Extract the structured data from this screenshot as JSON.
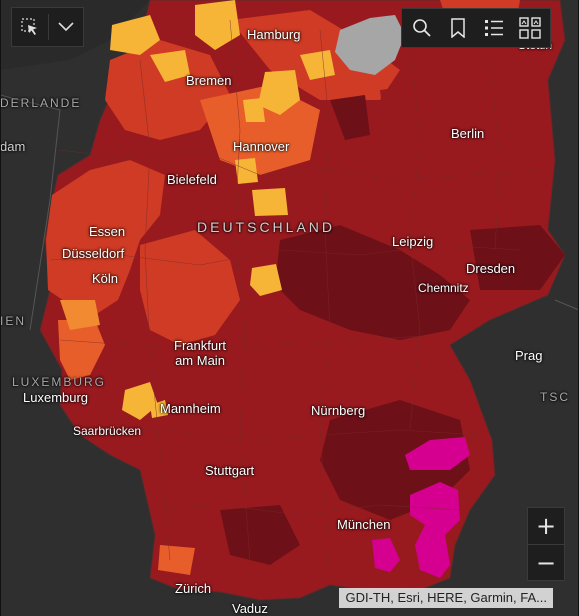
{
  "map": {
    "colors": {
      "background": "#2b2b2b",
      "very_high": "#6e1018",
      "high": "#981a1f",
      "medium_high": "#b52322",
      "medium": "#cf3b24",
      "low": "#e85e2a",
      "lower": "#f18a30",
      "lowest": "#f7b538",
      "extreme": "#d5008f",
      "no_data": "#a6a6a6"
    },
    "labels": {
      "country": "DEUTSCHLAND",
      "hamburg": "Hamburg",
      "bremen": "Bremen",
      "berlin": "Berlin",
      "hannover": "Hannover",
      "bielefeld": "Bielefeld",
      "essen": "Essen",
      "duesseldorf": "Düsseldorf",
      "koeln": "Köln",
      "leipzig": "Leipzig",
      "dresden": "Dresden",
      "chemnitz": "Chemnitz",
      "frankfurt": "Frankfurt\nam Main",
      "mannheim": "Mannheim",
      "saarbruecken": "Saarbrücken",
      "luxembourg_country": "LUXEMBURG",
      "luxembourg_city": "Luxemburg",
      "nuernberg": "Nürnberg",
      "stuttgart": "Stuttgart",
      "muenchen": "München",
      "prag": "Prag",
      "zuerich": "Zürich",
      "vaduz": "Vaduz",
      "stettin": "Stettin",
      "nederlande": "DERLANDE",
      "dam": "dam",
      "ien": "IEN",
      "tsc": "TSC"
    }
  },
  "toolbar_left": {
    "select_icon": "select-cursor-icon",
    "dropdown_icon": "chevron-down-icon"
  },
  "toolbar_right": {
    "search_icon": "search-icon",
    "bookmark_icon": "bookmark-icon",
    "legend_icon": "list-icon",
    "basemap_icon": "basemap-gallery-icon"
  },
  "zoom": {
    "in_label": "+",
    "out_label": "−"
  },
  "attribution": {
    "text": "GDI-TH, Esri, HERE, Garmin, FA..."
  }
}
